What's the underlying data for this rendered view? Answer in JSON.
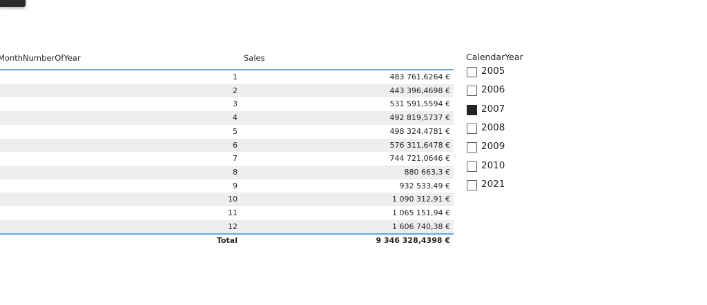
{
  "table": {
    "columns": [
      "MonthNumberOfYear",
      "Sales"
    ],
    "rows": [
      [
        "1",
        "483 761,6264 €"
      ],
      [
        "2",
        "443 396,4698 €"
      ],
      [
        "3",
        "531 591,5594 €"
      ],
      [
        "4",
        "492 819,5737 €"
      ],
      [
        "5",
        "498 324,4781 €"
      ],
      [
        "6",
        "576 311,6478 €"
      ],
      [
        "7",
        "744 721,0646 €"
      ],
      [
        "8",
        "880 663,3 €"
      ],
      [
        "9",
        "932 533,49 €"
      ],
      [
        "10",
        "1 090 312,91 €"
      ],
      [
        "11",
        "1 065 151,94 €"
      ],
      [
        "12",
        "1 606 740,38 €"
      ]
    ],
    "total": [
      "Total",
      "9 346 328,4398 €"
    ]
  },
  "slicer": {
    "title": "CalendarYear",
    "items": [
      {
        "label": "2005",
        "checked": false
      },
      {
        "label": "2006",
        "checked": false
      },
      {
        "label": "2007",
        "checked": true
      },
      {
        "label": "2008",
        "checked": false
      },
      {
        "label": "2009",
        "checked": false
      },
      {
        "label": "2010",
        "checked": false
      },
      {
        "label": "2021",
        "checked": false
      }
    ]
  }
}
